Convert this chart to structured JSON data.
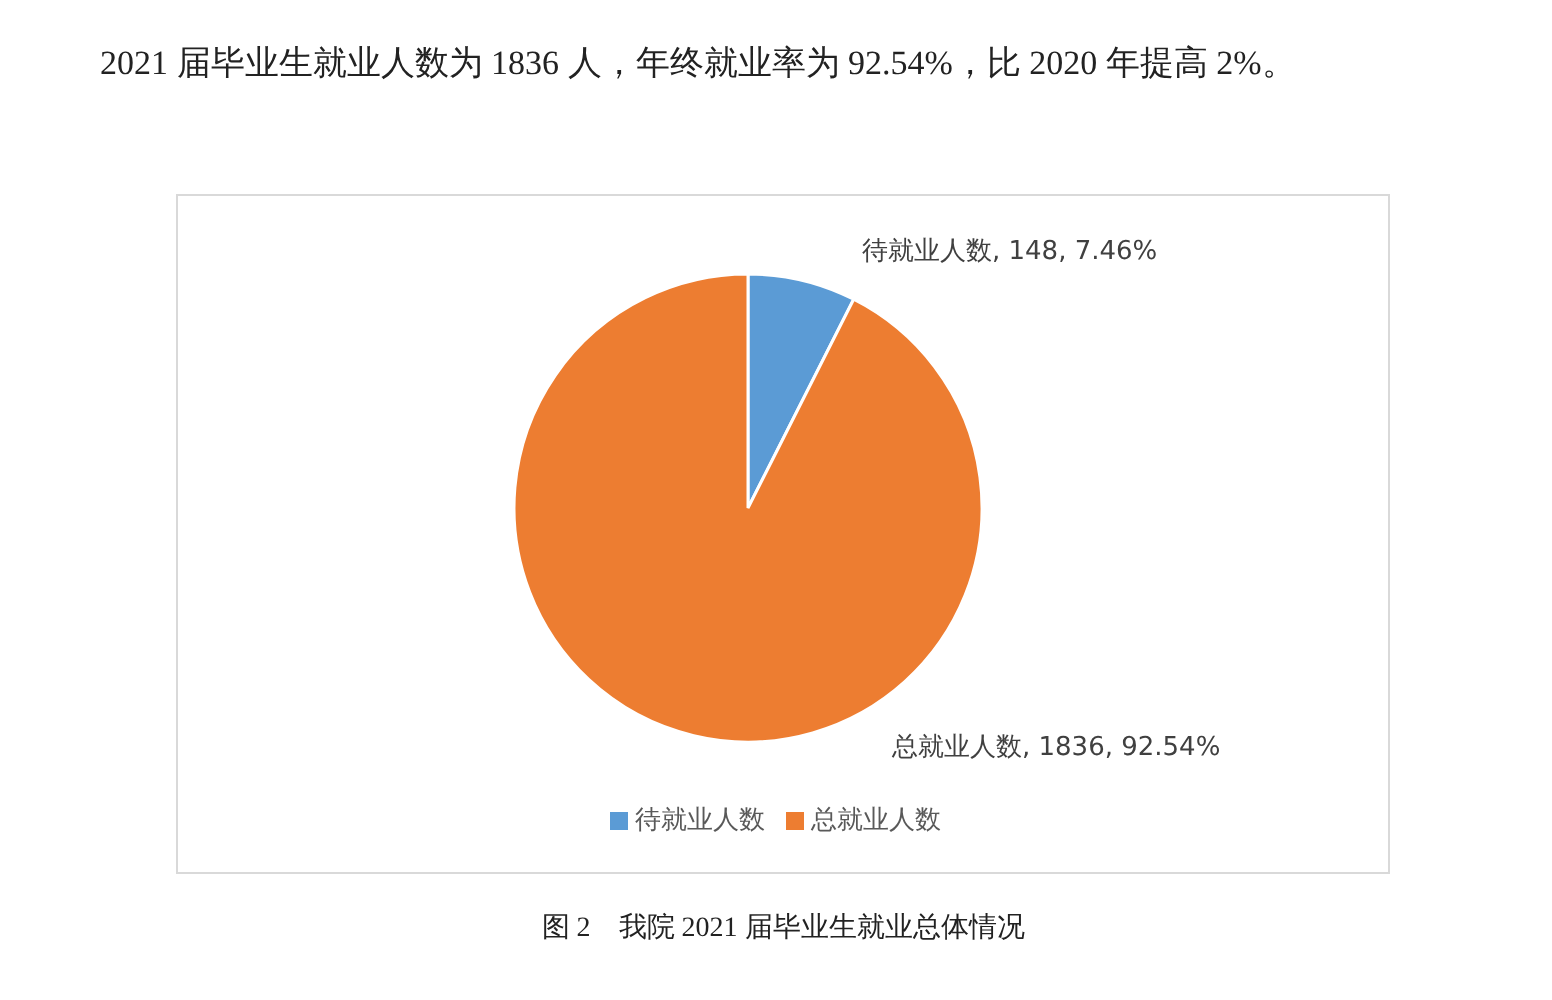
{
  "chart_data": {
    "type": "pie",
    "categories": [
      "待就业人数",
      "总就业人数"
    ],
    "values": [
      148,
      1836
    ],
    "colors": [
      "#5b9bd5",
      "#ed7d31"
    ],
    "value_labels": [
      ", 148, 7.46%",
      ", 1836, 92.54%"
    ],
    "legend": "bottom",
    "annotations": [
      "2021 届毕业生就业人数为 1836 人，年终就业率为 92.54%，比 2020 年提高 2%。",
      "图 2　我院 2021 届毕业生就业总体情况"
    ]
  }
}
